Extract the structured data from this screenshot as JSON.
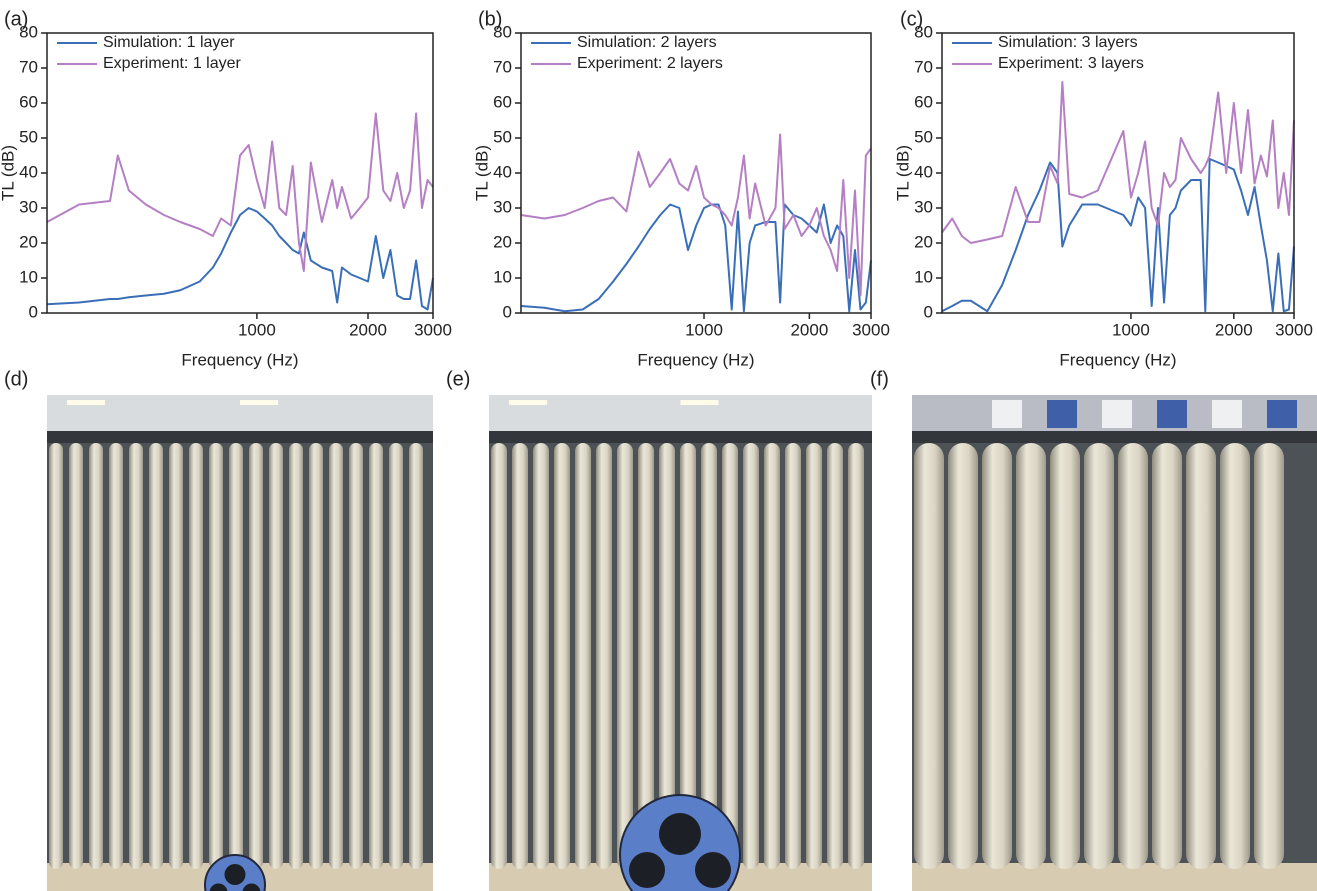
{
  "chart_data": [
    {
      "type": "line",
      "panel": "(a)",
      "x_label": "Frequency (Hz)",
      "y_label": "TL (dB)",
      "x_log": true,
      "xlim": [
        270,
        3000
      ],
      "xticks": [
        1000,
        2000,
        3000
      ],
      "ylim": [
        0,
        80
      ],
      "yticks": [
        0,
        10,
        20,
        30,
        40,
        50,
        60,
        70,
        80
      ],
      "legend": "upper left",
      "x": [
        270,
        330,
        400,
        420,
        450,
        500,
        560,
        620,
        700,
        760,
        800,
        850,
        900,
        950,
        1000,
        1050,
        1100,
        1150,
        1200,
        1250,
        1300,
        1340,
        1400,
        1500,
        1600,
        1650,
        1700,
        1800,
        1900,
        2000,
        2100,
        2200,
        2300,
        2400,
        2500,
        2600,
        2700,
        2800,
        2900,
        3000
      ],
      "series": [
        {
          "name": "Simulation: 1 layer",
          "color": "#3a6fb8",
          "values": [
            2.5,
            3,
            4,
            4,
            4.5,
            5,
            5.5,
            6.5,
            9,
            13,
            17,
            23,
            28,
            30,
            29,
            27,
            25,
            22,
            20,
            18,
            17,
            23,
            15,
            13,
            12,
            3,
            13,
            11,
            10,
            9,
            22,
            10,
            18,
            5,
            4,
            4,
            15,
            2,
            1,
            10
          ]
        },
        {
          "name": "Experiment: 1 layer",
          "color": "#b57fc4",
          "values": [
            26,
            31,
            32,
            45,
            35,
            31,
            28,
            26,
            24,
            22,
            27,
            25,
            45,
            48,
            38,
            30,
            49,
            30,
            28,
            42,
            20,
            12,
            43,
            26,
            38,
            30,
            36,
            27,
            30,
            33,
            57,
            35,
            32,
            40,
            30,
            35,
            57,
            30,
            38,
            36
          ]
        }
      ]
    },
    {
      "type": "line",
      "panel": "(b)",
      "x_label": "Frequency (Hz)",
      "y_label": "TL (dB)",
      "x_log": true,
      "xlim": [
        300,
        3000
      ],
      "xticks": [
        1000,
        2000,
        3000
      ],
      "ylim": [
        0,
        80
      ],
      "yticks": [
        0,
        10,
        20,
        30,
        40,
        50,
        60,
        70,
        80
      ],
      "legend": "upper left",
      "x": [
        300,
        350,
        400,
        450,
        500,
        550,
        600,
        650,
        700,
        750,
        800,
        850,
        900,
        950,
        1000,
        1050,
        1100,
        1150,
        1200,
        1250,
        1300,
        1350,
        1400,
        1500,
        1600,
        1650,
        1700,
        1800,
        1900,
        2000,
        2100,
        2200,
        2300,
        2400,
        2500,
        2600,
        2700,
        2800,
        2900,
        3000
      ],
      "series": [
        {
          "name": "Simulation: 2 layers",
          "color": "#3a6fb8",
          "values": [
            2,
            1.5,
            0.5,
            1,
            4,
            9,
            14,
            19,
            24,
            28,
            31,
            30,
            18,
            25,
            30,
            31,
            31,
            25,
            1,
            29,
            0.5,
            20,
            25,
            26,
            26,
            3,
            31,
            28,
            27,
            25,
            23,
            31,
            20,
            25,
            22,
            0.5,
            18,
            1,
            3,
            15
          ]
        },
        {
          "name": "Experiment: 2 layers",
          "color": "#b57fc4",
          "values": [
            28,
            27,
            28,
            30,
            32,
            33,
            29,
            46,
            36,
            40,
            44,
            37,
            35,
            42,
            33,
            31,
            30,
            28,
            25,
            33,
            45,
            27,
            37,
            25,
            30,
            51,
            24,
            28,
            22,
            25,
            30,
            22,
            18,
            12,
            38,
            10,
            35,
            5,
            45,
            47
          ]
        }
      ]
    },
    {
      "type": "line",
      "panel": "(c)",
      "x_label": "Frequency (Hz)",
      "y_label": "TL (dB)",
      "x_log": true,
      "xlim": [
        280,
        3000
      ],
      "xticks": [
        1000,
        2000,
        3000
      ],
      "ylim": [
        0,
        80
      ],
      "yticks": [
        0,
        10,
        20,
        30,
        40,
        50,
        60,
        70,
        80
      ],
      "legend": "upper left",
      "x": [
        280,
        300,
        320,
        340,
        380,
        420,
        460,
        500,
        540,
        580,
        610,
        630,
        660,
        720,
        800,
        950,
        1000,
        1050,
        1100,
        1150,
        1200,
        1250,
        1300,
        1350,
        1400,
        1500,
        1600,
        1650,
        1700,
        1800,
        1900,
        2000,
        2100,
        2200,
        2300,
        2400,
        2500,
        2600,
        2700,
        2800,
        2900,
        3000
      ],
      "series": [
        {
          "name": "Simulation: 3 layers",
          "color": "#3a6fb8",
          "values": [
            0.5,
            2,
            3.5,
            3.5,
            0.5,
            8,
            18,
            28,
            35,
            43,
            40,
            19,
            25,
            31,
            31,
            28,
            25,
            33,
            30,
            2,
            30,
            3,
            28,
            30,
            35,
            38,
            38,
            0.5,
            44,
            43,
            42,
            41,
            35,
            28,
            36,
            25,
            15,
            0.5,
            17,
            0.5,
            1,
            19
          ]
        },
        {
          "name": "Experiment: 3 layers",
          "color": "#b57fc4",
          "values": [
            23,
            27,
            22,
            20,
            21,
            22,
            36,
            26,
            26,
            42,
            37,
            66,
            34,
            33,
            35,
            52,
            33,
            40,
            49,
            30,
            25,
            40,
            36,
            38,
            50,
            44,
            40,
            42,
            45,
            63,
            40,
            60,
            40,
            58,
            37,
            45,
            39,
            55,
            30,
            40,
            28,
            55
          ]
        }
      ]
    }
  ],
  "photo_labels": [
    "(d)",
    "(e)",
    "(f)"
  ]
}
